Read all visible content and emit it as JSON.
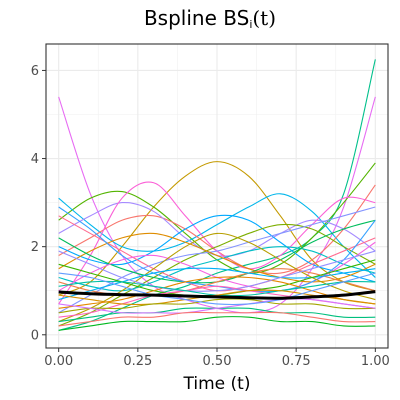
{
  "title": {
    "main": "Bspline BS",
    "subscript": "i",
    "suffix": "(t)"
  },
  "chart_data": {
    "type": "line",
    "title": "Bspline BSi(t)",
    "xlabel": "Time (t)",
    "ylabel": "",
    "xlim": [
      -0.04,
      1.04
    ],
    "ylim": [
      -0.3,
      6.6
    ],
    "x_ticks": [
      0.0,
      0.25,
      0.5,
      0.75,
      1.0
    ],
    "x_tick_labels": [
      "0.00",
      "0.25",
      "0.50",
      "0.75",
      "1.00"
    ],
    "y_ticks": [
      0,
      2,
      4,
      6
    ],
    "y_tick_labels": [
      "0",
      "2",
      "4",
      "6"
    ],
    "grid": true,
    "legend": "none",
    "x": [
      0,
      0.1,
      0.2,
      0.3,
      0.4,
      0.5,
      0.6,
      0.7,
      0.8,
      0.9,
      1.0
    ],
    "mean_series": {
      "name": "",
      "color": "#000000",
      "values": [
        0.97,
        0.93,
        0.91,
        0.9,
        0.88,
        0.86,
        0.84,
        0.83,
        0.86,
        0.9,
        0.98
      ]
    },
    "series": [
      {
        "color": "#e76bf3",
        "values": [
          5.4,
          3.2,
          1.8,
          1.1,
          0.8,
          0.6,
          0.5,
          0.7,
          1.5,
          2.9,
          5.4
        ]
      },
      {
        "color": "#00c08b",
        "values": [
          0.1,
          0.3,
          0.6,
          0.9,
          1.1,
          1.4,
          1.6,
          1.8,
          2.2,
          3.2,
          6.25
        ]
      },
      {
        "color": "#c49a00",
        "values": [
          0.9,
          1.2,
          2.0,
          2.9,
          3.6,
          3.93,
          3.6,
          2.7,
          1.7,
          1.2,
          1.0
        ]
      },
      {
        "color": "#53b400",
        "values": [
          2.6,
          3.1,
          3.25,
          2.9,
          2.3,
          1.7,
          1.4,
          1.6,
          2.2,
          3.0,
          3.9
        ]
      },
      {
        "color": "#00b6eb",
        "values": [
          3.1,
          2.5,
          2.0,
          1.9,
          2.1,
          2.5,
          2.9,
          3.2,
          2.8,
          2.0,
          1.3
        ]
      },
      {
        "color": "#f8766d",
        "values": [
          1.8,
          2.2,
          2.6,
          2.7,
          2.4,
          1.9,
          1.5,
          1.4,
          1.7,
          2.4,
          3.4
        ]
      },
      {
        "color": "#a58aff",
        "values": [
          2.3,
          2.7,
          3.0,
          2.8,
          2.2,
          1.8,
          1.9,
          2.3,
          2.6,
          2.4,
          1.9
        ]
      },
      {
        "color": "#fb61d7",
        "values": [
          0.7,
          1.8,
          3.1,
          3.45,
          2.7,
          1.9,
          1.5,
          1.8,
          2.5,
          3.1,
          3.0
        ]
      },
      {
        "color": "#00a9ff",
        "values": [
          2.0,
          1.7,
          1.6,
          1.9,
          2.4,
          2.7,
          2.6,
          2.1,
          1.6,
          1.4,
          1.2
        ]
      },
      {
        "color": "#7cae00",
        "values": [
          0.2,
          0.5,
          0.9,
          1.3,
          1.7,
          2.0,
          2.3,
          2.5,
          2.4,
          2.0,
          1.6
        ]
      },
      {
        "color": "#00bfc4",
        "values": [
          1.3,
          1.1,
          1.0,
          1.2,
          1.5,
          1.7,
          1.9,
          2.0,
          1.9,
          1.6,
          1.4
        ]
      },
      {
        "color": "#ff6c91",
        "values": [
          2.7,
          2.3,
          1.9,
          1.5,
          1.2,
          1.0,
          1.1,
          1.3,
          1.6,
          1.9,
          2.2
        ]
      },
      {
        "color": "#8494ff",
        "values": [
          0.5,
          0.9,
          1.3,
          1.6,
          1.8,
          1.9,
          2.1,
          2.3,
          2.5,
          2.7,
          2.9
        ]
      },
      {
        "color": "#de8c00",
        "values": [
          1.5,
          1.9,
          2.2,
          2.3,
          2.1,
          1.8,
          1.5,
          1.3,
          1.2,
          1.3,
          1.6
        ]
      },
      {
        "color": "#00bd5c",
        "values": [
          2.2,
          1.8,
          1.5,
          1.3,
          1.2,
          1.2,
          1.4,
          1.7,
          2.1,
          2.4,
          2.6
        ]
      },
      {
        "color": "#f564e3",
        "values": [
          1.0,
          1.4,
          1.7,
          1.8,
          1.6,
          1.3,
          1.1,
          1.0,
          1.2,
          1.6,
          2.1
        ]
      },
      {
        "color": "#35a2ff",
        "values": [
          2.9,
          2.4,
          1.8,
          1.4,
          1.2,
          1.1,
          1.0,
          1.0,
          1.2,
          1.7,
          2.6
        ]
      },
      {
        "color": "#b79f00",
        "values": [
          0.3,
          0.6,
          1.0,
          1.5,
          2.0,
          2.3,
          2.1,
          1.7,
          1.3,
          1.0,
          0.8
        ]
      },
      {
        "color": "#ef7f49",
        "values": [
          1.2,
          1.0,
          0.9,
          0.9,
          1.0,
          1.2,
          1.4,
          1.5,
          1.4,
          1.2,
          1.0
        ]
      },
      {
        "color": "#00b0f6",
        "values": [
          0.8,
          1.0,
          1.2,
          1.4,
          1.5,
          1.5,
          1.4,
          1.3,
          1.3,
          1.4,
          1.5
        ]
      },
      {
        "color": "#39b600",
        "values": [
          1.6,
          1.4,
          1.2,
          1.0,
          0.9,
          0.9,
          1.0,
          1.1,
          1.3,
          1.5,
          1.7
        ]
      },
      {
        "color": "#e58700",
        "values": [
          0.6,
          0.7,
          0.8,
          1.0,
          1.2,
          1.3,
          1.3,
          1.2,
          1.0,
          0.8,
          0.7
        ]
      },
      {
        "color": "#9590ff",
        "values": [
          1.9,
          1.6,
          1.3,
          1.1,
          1.0,
          1.0,
          1.1,
          1.3,
          1.5,
          1.7,
          1.9
        ]
      },
      {
        "color": "#ff62bc",
        "values": [
          0.4,
          0.5,
          0.7,
          0.9,
          1.0,
          1.1,
          1.0,
          0.9,
          0.8,
          0.7,
          0.6
        ]
      },
      {
        "color": "#00c1a3",
        "values": [
          1.1,
          1.2,
          1.2,
          1.1,
          1.0,
          0.9,
          0.9,
          1.0,
          1.1,
          1.2,
          1.2
        ]
      },
      {
        "color": "#d89000",
        "values": [
          0.9,
          0.8,
          0.7,
          0.7,
          0.8,
          0.9,
          1.0,
          1.0,
          0.9,
          0.8,
          0.7
        ]
      },
      {
        "color": "#a3a500",
        "values": [
          0.5,
          0.6,
          0.6,
          0.7,
          0.7,
          0.8,
          0.8,
          0.7,
          0.7,
          0.6,
          0.6
        ]
      },
      {
        "color": "#00bf7d",
        "values": [
          0.3,
          0.4,
          0.5,
          0.5,
          0.6,
          0.6,
          0.6,
          0.5,
          0.5,
          0.4,
          0.4
        ]
      },
      {
        "color": "#d575fe",
        "values": [
          0.7,
          0.6,
          0.5,
          0.5,
          0.5,
          0.6,
          0.7,
          0.8,
          0.8,
          0.7,
          0.6
        ]
      },
      {
        "color": "#619cff",
        "values": [
          1.4,
          1.3,
          1.1,
          0.9,
          0.8,
          0.7,
          0.7,
          0.8,
          1.0,
          1.2,
          1.4
        ]
      },
      {
        "color": "#f8766d",
        "values": [
          0.2,
          0.3,
          0.4,
          0.4,
          0.5,
          0.5,
          0.5,
          0.5,
          0.4,
          0.3,
          0.3
        ]
      },
      {
        "color": "#00b81f",
        "values": [
          0.1,
          0.2,
          0.3,
          0.3,
          0.3,
          0.4,
          0.4,
          0.3,
          0.3,
          0.2,
          0.2
        ]
      }
    ]
  }
}
